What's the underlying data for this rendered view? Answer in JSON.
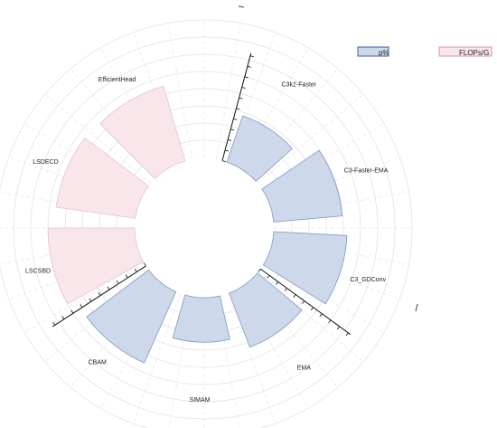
{
  "chart_data": {
    "type": "bar",
    "subtype": "radial-polar-bar",
    "title": "",
    "legend": {
      "placement": "top-right",
      "items": [
        {
          "label": "p%",
          "fill": "#cdd8ea",
          "stroke": "#3d5f96"
        },
        {
          "label": "FLOPs/G",
          "fill": "#f8e6ea",
          "stroke": "#d49aa8"
        }
      ]
    },
    "categories": [
      "C3k2-Faster",
      "C3-Faster-EMA",
      "C3_GDConv",
      "EMA",
      "SIMAM",
      "CBAM",
      "LSCSBD",
      "LSDECD",
      "EfficientHead"
    ],
    "series": [
      {
        "name": "p%",
        "color": "#cdd8ea",
        "edge": "#7f98c4",
        "values": [
          0.44,
          0.62,
          0.66,
          0.52,
          0.4,
          0.7,
          null,
          null,
          null
        ]
      },
      {
        "name": "FLOPs/G",
        "color": "#f8e6ea",
        "edge": "#e6c3cb",
        "values": [
          null,
          null,
          null,
          null,
          null,
          null,
          0.78,
          0.72,
          0.7
        ]
      }
    ],
    "grid": true,
    "axis_ticks": true
  }
}
